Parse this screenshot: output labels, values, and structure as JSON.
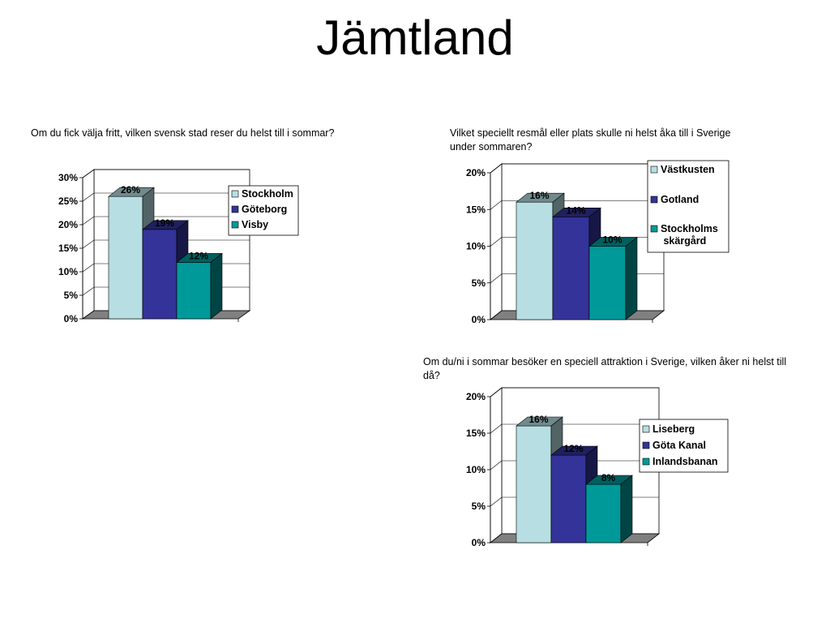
{
  "slide": {
    "title": "Jämtland"
  },
  "colors": {
    "series": [
      "#b7dfe3",
      "#333399",
      "#009999"
    ]
  },
  "chart_data": [
    {
      "type": "bar",
      "question": "Om du fick välja fritt, vilken svensk stad reser du helst till i sommar?",
      "series": [
        {
          "name": "Stockholm",
          "values": [
            26
          ],
          "label": "26%"
        },
        {
          "name": "Göteborg",
          "values": [
            19
          ],
          "label": "19%"
        },
        {
          "name": "Visby",
          "values": [
            12
          ],
          "label": "12%"
        }
      ],
      "ylim": [
        0,
        30
      ],
      "yticks": [
        "0%",
        "5%",
        "10%",
        "15%",
        "20%",
        "25%",
        "30%"
      ],
      "grid": true,
      "legend": "right"
    },
    {
      "type": "bar",
      "question": "Vilket speciellt resmål eller plats skulle ni helst åka till i Sverige under sommaren?",
      "series": [
        {
          "name": "Västkusten",
          "values": [
            16
          ],
          "label": "16%"
        },
        {
          "name": "Gotland",
          "values": [
            14
          ],
          "label": "14%"
        },
        {
          "name": "Stockholms skärgård",
          "values": [
            10
          ],
          "label": "10%"
        }
      ],
      "ylim": [
        0,
        20
      ],
      "yticks": [
        "0%",
        "5%",
        "10%",
        "15%",
        "20%"
      ],
      "grid": true,
      "legend": "right"
    },
    {
      "type": "bar",
      "question": "Om du/ni i sommar besöker en speciell attraktion i Sverige, vilken åker ni helst till då?",
      "series": [
        {
          "name": "Liseberg",
          "values": [
            16
          ],
          "label": "16%"
        },
        {
          "name": "Göta Kanal",
          "values": [
            12
          ],
          "label": "12%"
        },
        {
          "name": "Inlandsbanan",
          "values": [
            8
          ],
          "label": "8%"
        }
      ],
      "ylim": [
        0,
        20
      ],
      "yticks": [
        "0%",
        "5%",
        "10%",
        "15%",
        "20%"
      ],
      "grid": true,
      "legend": "right"
    }
  ]
}
